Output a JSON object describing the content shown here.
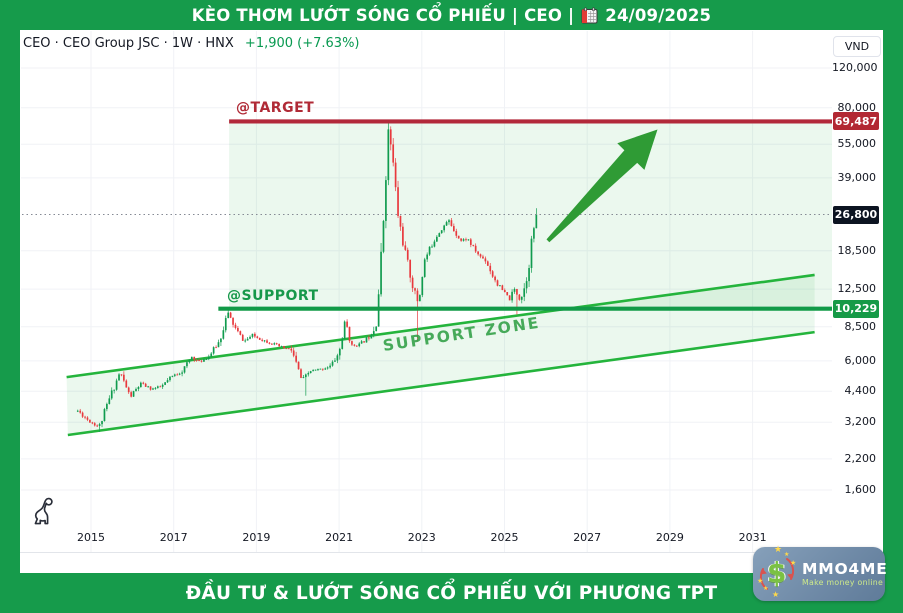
{
  "header": {
    "title": "KÈO THƠM LƯỚT SÓNG CỔ PHIẾU | CEO |",
    "date": "24/09/2025"
  },
  "toolbar": {
    "legend_symbol": "CEO · CEO Group JSC · 1W · HNX",
    "legend_change": "+1,900 (+7.63%)",
    "currency_button": "VND"
  },
  "annotations": {
    "target_label": "@TARGET",
    "support_label": "@SUPPORT",
    "zone_label": "SUPPORT ZONE"
  },
  "badges": {
    "target_price": "69,487",
    "current_price": "26,800",
    "support_price": "10,229"
  },
  "footer": {
    "text": "ĐẦU TƯ & LƯỚT SÓNG CỔ PHIẾU VỚI PHƯƠNG TPT"
  },
  "logo": {
    "brand": "MMO4ME",
    "tagline": "Make money online",
    "symbol": "$"
  },
  "chart_data": {
    "type": "candlestick",
    "symbol": "CEO",
    "company": "CEO Group JSC",
    "timeframe": "1W",
    "exchange": "HNX",
    "currency": "VND",
    "scale": "log",
    "title": "CEO weekly chart with support zone and target",
    "x_axis_years": [
      2015,
      2017,
      2019,
      2021,
      2023,
      2025,
      2027,
      2029,
      2031
    ],
    "y_axis_ticks": [
      120000,
      80000,
      55000,
      39000,
      18500,
      12500,
      8500,
      6000,
      4400,
      3200,
      2200,
      1600
    ],
    "levels": {
      "target": 69487,
      "support": 10229,
      "current": 26800,
      "change": "+1,900",
      "change_pct": "+7.63%"
    },
    "target_line_start_year": 2018.34,
    "support_line_start_year": 2018.08,
    "zone_rect": {
      "t0": 2018.34,
      "p0": 10229,
      "p1": 69487
    },
    "channel": {
      "upper": [
        [
          2014.41,
          5080
        ],
        [
          2032.5,
          14450
        ]
      ],
      "lower": [
        [
          2014.44,
          2810
        ],
        [
          2032.5,
          8050
        ]
      ]
    },
    "trend_arrow": {
      "from": [
        2026.05,
        20500
      ],
      "to": [
        2028.7,
        64000
      ]
    },
    "bars": 190,
    "t_start": 2014.68,
    "t_end": 2025.77,
    "price_path": [
      [
        2014.68,
        3600
      ],
      [
        2014.95,
        3250
      ],
      [
        2015.2,
        3050
      ],
      [
        2015.45,
        4100
      ],
      [
        2015.7,
        5350
      ],
      [
        2015.95,
        4150
      ],
      [
        2016.2,
        4750
      ],
      [
        2016.45,
        4500
      ],
      [
        2016.7,
        4600
      ],
      [
        2016.95,
        5100
      ],
      [
        2017.2,
        5400
      ],
      [
        2017.45,
        6300
      ],
      [
        2017.6,
        5900
      ],
      [
        2017.85,
        6300
      ],
      [
        2018.1,
        7300
      ],
      [
        2018.3,
        9800
      ],
      [
        2018.5,
        8300
      ],
      [
        2018.7,
        7300
      ],
      [
        2018.9,
        7800
      ],
      [
        2019.1,
        7500
      ],
      [
        2019.35,
        7200
      ],
      [
        2019.6,
        6900
      ],
      [
        2019.85,
        6700
      ],
      [
        2020.1,
        4900
      ],
      [
        2020.3,
        5400
      ],
      [
        2020.55,
        5500
      ],
      [
        2020.8,
        5700
      ],
      [
        2021.0,
        6500
      ],
      [
        2021.15,
        9100
      ],
      [
        2021.3,
        7000
      ],
      [
        2021.5,
        7100
      ],
      [
        2021.7,
        7600
      ],
      [
        2021.88,
        8600
      ],
      [
        2021.98,
        13500
      ],
      [
        2022.08,
        27000
      ],
      [
        2022.15,
        48000
      ],
      [
        2022.2,
        66000
      ],
      [
        2022.3,
        46000
      ],
      [
        2022.42,
        27000
      ],
      [
        2022.55,
        20000
      ],
      [
        2022.68,
        15500
      ],
      [
        2022.8,
        12500
      ],
      [
        2022.92,
        10800
      ],
      [
        2023.05,
        16500
      ],
      [
        2023.2,
        19000
      ],
      [
        2023.35,
        21500
      ],
      [
        2023.5,
        23500
      ],
      [
        2023.65,
        25200
      ],
      [
        2023.8,
        22500
      ],
      [
        2023.95,
        20500
      ],
      [
        2024.1,
        21000
      ],
      [
        2024.25,
        19000
      ],
      [
        2024.4,
        17500
      ],
      [
        2024.55,
        16800
      ],
      [
        2024.7,
        14500
      ],
      [
        2024.85,
        13000
      ],
      [
        2025.0,
        12000
      ],
      [
        2025.12,
        11300
      ],
      [
        2025.25,
        12500
      ],
      [
        2025.38,
        11200
      ],
      [
        2025.5,
        13000
      ],
      [
        2025.58,
        16000
      ],
      [
        2025.66,
        20500
      ],
      [
        2025.72,
        24000
      ],
      [
        2025.77,
        26800
      ]
    ],
    "wick_events": [
      {
        "t": 2015.2,
        "low": 2900
      },
      {
        "t": 2018.3,
        "high": 10229
      },
      {
        "t": 2020.18,
        "low": 4200
      },
      {
        "t": 2022.2,
        "high": 69487
      },
      {
        "t": 2022.9,
        "low": 7300
      },
      {
        "t": 2025.32,
        "low": 9650
      },
      {
        "t": 2025.77,
        "high": 28600
      }
    ],
    "colors": {
      "up": "#109b4e",
      "down": "#e8393d",
      "channel": "#24b43c",
      "support": "#119a47",
      "target": "#b2293a",
      "zone_fill": "rgba(62,186,92,0.10)",
      "arrow": "#2f9b35",
      "dotted": "#858a94",
      "grid": "#f0f2f6"
    }
  }
}
